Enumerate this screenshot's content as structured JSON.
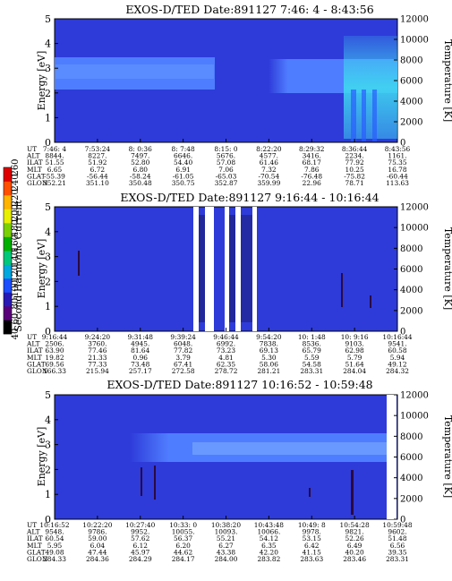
{
  "colors": {
    "background": "#2e3bd9",
    "band": "#4f7dff",
    "band_hot": "#3fd8f0",
    "white_gap": "#ffffff",
    "feature_dark": "#2a0a40"
  },
  "colorbar": {
    "label": "Second Harmonic Current",
    "ticks": [
      "40",
      "60",
      "80",
      "100",
      "120",
      "140",
      "160",
      "180",
      "200",
      "220",
      "240",
      "260"
    ],
    "colors": [
      "#000000",
      "#5a007a",
      "#2a1ab5",
      "#1d4fff",
      "#00a8e0",
      "#00c87a",
      "#00b000",
      "#7ad000",
      "#e8f000",
      "#ffb400",
      "#ff5000",
      "#e00000"
    ]
  },
  "chart_data": [
    {
      "type": "heatmap",
      "title": "EXOS-D/TED   Date:891127  7:46: 4 - 8:43:56",
      "ylabel": "Energy [eV]",
      "y2label": "Temperature [K]",
      "ylim": [
        0,
        5
      ],
      "y2lim": [
        0,
        12000
      ],
      "yticks": [
        "0",
        "1",
        "2",
        "3",
        "4",
        "5"
      ],
      "y2ticks": [
        "0",
        "2000",
        "4000",
        "6000",
        "8000",
        "10000",
        "12000"
      ],
      "table": {
        "rows": [
          "UT",
          "ALT",
          "ILAT",
          "MLT",
          "GLAT",
          "GLON"
        ],
        "columns": [
          [
            "7:46: 4",
            "8844.",
            "51.55",
            "6.65",
            "-55.39",
            "352.21"
          ],
          [
            "7:53:24",
            "8227.",
            "51.92",
            "6.72",
            "-56.44",
            "351.10"
          ],
          [
            "8: 0:36",
            "7497.",
            "52.80",
            "6.80",
            "-58.24",
            "350.48"
          ],
          [
            "8: 7:48",
            "6646.",
            "54.40",
            "6.91",
            "-61.05",
            "350.75"
          ],
          [
            "8:15: 0",
            "5676.",
            "57.08",
            "7.06",
            "-65.03",
            "352.87"
          ],
          [
            "8:22:20",
            "4577.",
            "61.46",
            "7.32",
            "-70.54",
            "359.99"
          ],
          [
            "8:29:32",
            "3416.",
            "68.17",
            "7.86",
            "-76.48",
            "22.96"
          ],
          [
            "8:36:44",
            "2234.",
            "77.92",
            "10.25",
            "-75.82",
            "78.71"
          ],
          [
            "8:43:56",
            "1161.",
            "75.35",
            "16.78",
            "-60.44",
            "113.63"
          ]
        ]
      }
    },
    {
      "type": "heatmap",
      "title": "EXOS-D/TED   Date:891127  9:16:44 - 10:16:44",
      "ylabel": "Energy [eV]",
      "y2label": "Temperature [K]",
      "ylim": [
        0,
        5
      ],
      "y2lim": [
        0,
        12000
      ],
      "yticks": [
        "0",
        "1",
        "2",
        "3",
        "4",
        "5"
      ],
      "y2ticks": [
        "0",
        "2000",
        "4000",
        "6000",
        "8000",
        "10000",
        "12000"
      ],
      "table": {
        "rows": [
          "UT",
          "ALT",
          "ILAT",
          "MLT",
          "GLAT",
          "GLON"
        ],
        "columns": [
          [
            "9:16:44",
            "2506.",
            "63.90",
            "19.82",
            "69.56",
            "166.33"
          ],
          [
            "9:24:20",
            "3760.",
            "77.46",
            "21.33",
            "77.33",
            "215.94"
          ],
          [
            "9:31:48",
            "4945.",
            "81.64",
            "0.96",
            "73.48",
            "257.17"
          ],
          [
            "9:39:24",
            "6048.",
            "77.82",
            "3.79",
            "67.41",
            "272.58"
          ],
          [
            "9:46:44",
            "6992.",
            "73.23",
            "4.81",
            "62.35",
            "278.72"
          ],
          [
            "9:54:20",
            "7838.",
            "69.13",
            "5.30",
            "58.06",
            "281.21"
          ],
          [
            "10: 1:48",
            "8536.",
            "65.79",
            "5.59",
            "54.58",
            "283.31"
          ],
          [
            "10: 9:16",
            "9103.",
            "62.98",
            "5.79",
            "51.64",
            "284.04"
          ],
          [
            "10:16:44",
            "9541.",
            "60.58",
            "5.94",
            "49.12",
            "284.32"
          ]
        ]
      }
    },
    {
      "type": "heatmap",
      "title": "EXOS-D/TED   Date:891127  10:16:52 - 10:59:48",
      "ylabel": "Energy [eV]",
      "y2label": "Temperature [K]",
      "ylim": [
        0,
        5
      ],
      "y2lim": [
        0,
        12000
      ],
      "yticks": [
        "0",
        "1",
        "2",
        "3",
        "4",
        "5"
      ],
      "y2ticks": [
        "0",
        "2000",
        "4000",
        "6000",
        "8000",
        "10000",
        "12000"
      ],
      "table": {
        "rows": [
          "UT",
          "ALT",
          "ILAT",
          "MLT",
          "GLAT",
          "GLON"
        ],
        "columns": [
          [
            "10:16:52",
            "9548.",
            "60.54",
            "5.95",
            "49.08",
            "284.33"
          ],
          [
            "10:22:20",
            "9786.",
            "59.00",
            "6.04",
            "47.44",
            "284.36"
          ],
          [
            "10:27:40",
            "9952.",
            "57.62",
            "6.12",
            "45.97",
            "284.29"
          ],
          [
            "10:33: 0",
            "10055.",
            "56.37",
            "6.20",
            "44.62",
            "284.17"
          ],
          [
            "10:38:20",
            "10093.",
            "55.21",
            "6.27",
            "43.38",
            "284.00"
          ],
          [
            "10:43:48",
            "10066.",
            "54.12",
            "6.35",
            "42.20",
            "283.82"
          ],
          [
            "10:49: 8",
            "9978.",
            "53.15",
            "6.42",
            "41.15",
            "283.63"
          ],
          [
            "10:54:28",
            "9821.",
            "52.26",
            "6.49",
            "40.20",
            "283.46"
          ],
          [
            "10:59:48",
            "9602.",
            "51.48",
            "6.56",
            "39.35",
            "283.31"
          ]
        ]
      }
    }
  ]
}
